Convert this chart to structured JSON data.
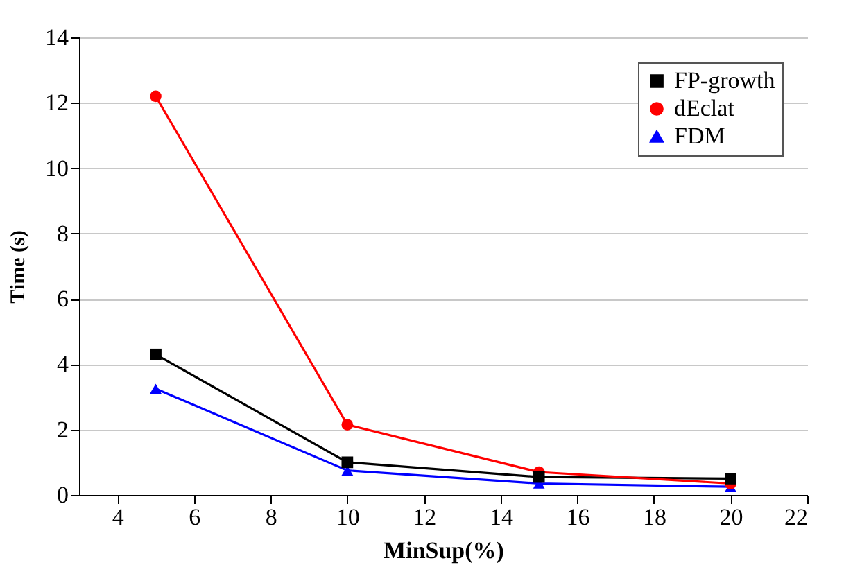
{
  "chart_data": {
    "type": "line",
    "xlabel": "MinSup(%)",
    "ylabel": "Time (s)",
    "x": [
      5,
      10,
      15,
      20
    ],
    "series": [
      {
        "name": "FP-growth",
        "color": "#000000",
        "marker": "square",
        "values": [
          4.3,
          1.0,
          0.55,
          0.5
        ]
      },
      {
        "name": "dEclat",
        "color": "#ff0000",
        "marker": "circle",
        "values": [
          12.2,
          2.15,
          0.7,
          0.35
        ]
      },
      {
        "name": "FDM",
        "color": "#0000ff",
        "marker": "triangle",
        "values": [
          3.25,
          0.75,
          0.35,
          0.25
        ]
      }
    ],
    "xlim": [
      3,
      22
    ],
    "xticks": [
      4,
      6,
      8,
      10,
      12,
      14,
      16,
      18,
      20,
      22
    ],
    "ylim": [
      0,
      14
    ],
    "yticks": [
      0,
      2,
      4,
      6,
      8,
      10,
      12,
      14
    ],
    "grid": "y",
    "legend": "top right",
    "line_style": "solid"
  }
}
